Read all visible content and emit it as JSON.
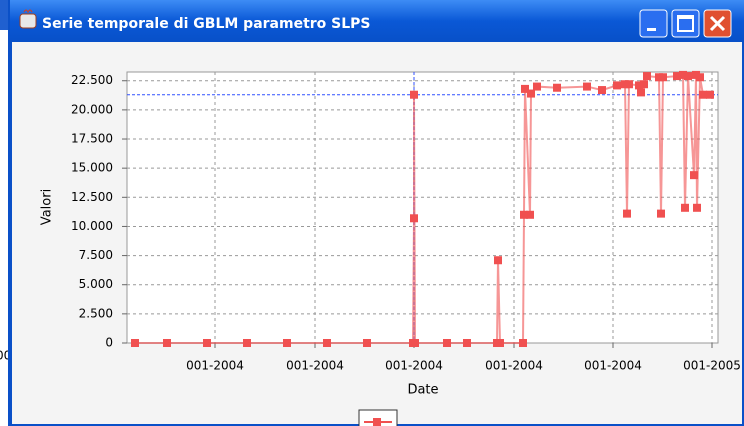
{
  "window": {
    "title": "Serie temporale di GBLM parametro SLPS"
  },
  "background_text": "00",
  "chart_data": {
    "type": "line",
    "ylabel": "Valori",
    "xlabel": "Date",
    "xlim": [
      0,
      591
    ],
    "ylim": [
      0,
      23250
    ],
    "xticks": [
      {
        "value": 88,
        "label": "001-2004"
      },
      {
        "value": 188,
        "label": "001-2004"
      },
      {
        "value": 287,
        "label": "001-2004"
      },
      {
        "value": 387,
        "label": "001-2004"
      },
      {
        "value": 486,
        "label": "001-2004"
      },
      {
        "value": 585,
        "label": "001-2005"
      }
    ],
    "yticks": [
      0,
      {
        "value": 2500,
        "label": "2.500"
      },
      {
        "value": 5000,
        "label": "5.000"
      },
      {
        "value": 7500,
        "label": "7.500"
      },
      {
        "value": 10000,
        "label": "10.000"
      },
      {
        "value": 12500,
        "label": "12.500"
      },
      {
        "value": 15000,
        "label": "15.000"
      },
      {
        "value": 17500,
        "label": "17.500"
      },
      {
        "value": 20000,
        "label": "20.000"
      },
      {
        "value": 22500,
        "label": "22.500"
      }
    ],
    "grid": true,
    "crosshair": {
      "x": 287,
      "y": 21300
    },
    "x": [
      8,
      40,
      80,
      120,
      160,
      200,
      240,
      286,
      287,
      287,
      288,
      320,
      340,
      370,
      371,
      373,
      396,
      397,
      398,
      403,
      404,
      410,
      430,
      460,
      475,
      490,
      498,
      500,
      502,
      512,
      514,
      517,
      520,
      532,
      534,
      536,
      550,
      556,
      558,
      561,
      567,
      569,
      570,
      573,
      576,
      583
    ],
    "series": [
      {
        "color": "#f05050",
        "values": [
          0,
          0,
          0,
          0,
          0,
          0,
          0,
          0,
          10700,
          21300,
          0,
          0,
          0,
          0,
          7100,
          0,
          0,
          11000,
          21800,
          11000,
          21400,
          22000,
          21900,
          22000,
          21700,
          22100,
          22200,
          11100,
          22200,
          22100,
          21500,
          22200,
          22900,
          22800,
          11100,
          22800,
          22900,
          23000,
          11600,
          22900,
          14400,
          23000,
          11600,
          22800,
          21300,
          21300
        ]
      }
    ]
  }
}
